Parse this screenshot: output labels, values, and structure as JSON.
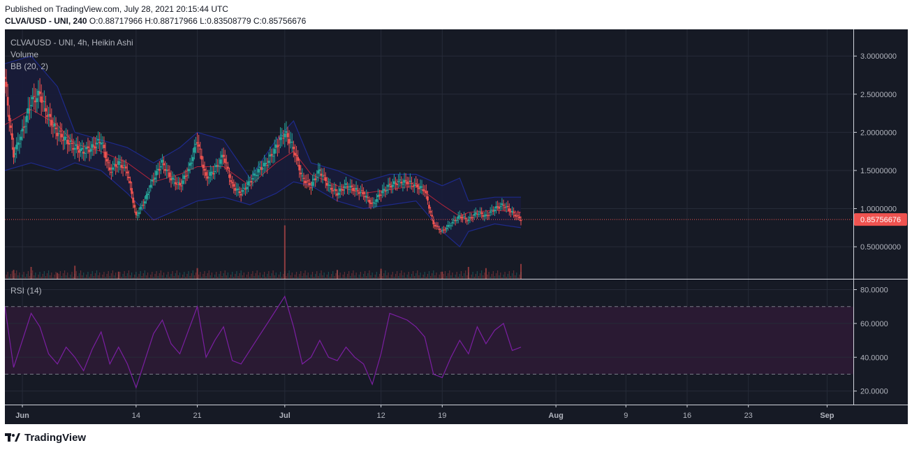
{
  "published": "Published on TradingView.com, July 28, 2021 20:15:44 UTC",
  "ohlc_line": {
    "symbol": "CLVA/USD - UNI, 240",
    "o_label": "O:",
    "o": "0.88717966",
    "h_label": "H:",
    "h": "0.88717966",
    "l_label": "L:",
    "l": "0.83508779",
    "c_label": "C:",
    "c": "0.85756676"
  },
  "legend": {
    "main": "CLVA/USD - UNI, 4h, Heikin Ashi",
    "volume": "Volume",
    "bb": "BB (20, 2)",
    "rsi": "RSI (14)"
  },
  "last_price_label": "0.85756676",
  "footer": {
    "brand": "TradingView"
  },
  "colors": {
    "background": "#161a25",
    "grid": "#262b38",
    "up": "#26a69a",
    "down": "#ef5350",
    "bb_band": "#1e2a8a",
    "bb_fill": "#181c3a",
    "bb_basis": "#b2243a",
    "rsi_line": "#7b1fa2",
    "rsi_band": "#2a1a33",
    "price_tag": "#ef5350",
    "axis_text": "#b2b5be"
  },
  "chart_data": {
    "type": "candlestick",
    "candle_style": "Heikin Ashi",
    "interval": "4h",
    "x_ticks": [
      "Jun",
      "14",
      "21",
      "Jul",
      "12",
      "19",
      "Aug",
      "9",
      "16",
      "23",
      "Sep"
    ],
    "x_tick_dates": [
      "2021-06-01",
      "2021-06-14",
      "2021-06-21",
      "2021-07-01",
      "2021-07-12",
      "2021-07-19",
      "2021-08-01",
      "2021-08-09",
      "2021-08-16",
      "2021-08-23",
      "2021-09-01"
    ],
    "x_range": [
      "2021-05-30",
      "2021-09-04"
    ],
    "price_axis": {
      "ticks": [
        3.0,
        2.5,
        2.0,
        1.5,
        1.0,
        0.5
      ],
      "tick_labels": [
        "3.0000000",
        "2.5000000",
        "2.0000000",
        "1.5000000",
        "1.0000000",
        "0.50000000"
      ],
      "ylim": [
        0.08,
        3.35
      ],
      "last_price": 0.85756676
    },
    "price_path": [
      [
        "2021-05-30",
        2.7
      ],
      [
        "2021-05-31",
        1.7
      ],
      [
        "2021-06-01",
        2.0
      ],
      [
        "2021-06-02",
        2.4
      ],
      [
        "2021-06-03",
        2.5
      ],
      [
        "2021-06-04",
        2.2
      ],
      [
        "2021-06-05",
        2.0
      ],
      [
        "2021-06-06",
        1.9
      ],
      [
        "2021-06-07",
        1.8
      ],
      [
        "2021-06-08",
        1.75
      ],
      [
        "2021-06-09",
        1.8
      ],
      [
        "2021-06-10",
        1.9
      ],
      [
        "2021-06-11",
        1.5
      ],
      [
        "2021-06-12",
        1.6
      ],
      [
        "2021-06-13",
        1.5
      ],
      [
        "2021-06-14",
        0.9
      ],
      [
        "2021-06-15",
        1.1
      ],
      [
        "2021-06-16",
        1.4
      ],
      [
        "2021-06-17",
        1.6
      ],
      [
        "2021-06-18",
        1.4
      ],
      [
        "2021-06-19",
        1.3
      ],
      [
        "2021-06-20",
        1.5
      ],
      [
        "2021-06-21",
        1.9
      ],
      [
        "2021-06-22",
        1.4
      ],
      [
        "2021-06-23",
        1.5
      ],
      [
        "2021-06-24",
        1.7
      ],
      [
        "2021-06-25",
        1.3
      ],
      [
        "2021-06-26",
        1.2
      ],
      [
        "2021-06-27",
        1.35
      ],
      [
        "2021-06-28",
        1.5
      ],
      [
        "2021-06-29",
        1.6
      ],
      [
        "2021-06-30",
        1.8
      ],
      [
        "2021-07-01",
        2.0
      ],
      [
        "2021-07-02",
        1.8
      ],
      [
        "2021-07-03",
        1.4
      ],
      [
        "2021-07-04",
        1.3
      ],
      [
        "2021-07-05",
        1.5
      ],
      [
        "2021-07-06",
        1.3
      ],
      [
        "2021-07-07",
        1.2
      ],
      [
        "2021-07-08",
        1.3
      ],
      [
        "2021-07-09",
        1.25
      ],
      [
        "2021-07-10",
        1.2
      ],
      [
        "2021-07-11",
        1.05
      ],
      [
        "2021-07-12",
        1.2
      ],
      [
        "2021-07-13",
        1.3
      ],
      [
        "2021-07-14",
        1.35
      ],
      [
        "2021-07-15",
        1.35
      ],
      [
        "2021-07-16",
        1.3
      ],
      [
        "2021-07-17",
        1.25
      ],
      [
        "2021-07-18",
        0.8
      ],
      [
        "2021-07-19",
        0.7
      ],
      [
        "2021-07-20",
        0.8
      ],
      [
        "2021-07-21",
        0.9
      ],
      [
        "2021-07-22",
        0.85
      ],
      [
        "2021-07-23",
        0.95
      ],
      [
        "2021-07-24",
        0.9
      ],
      [
        "2021-07-25",
        1.0
      ],
      [
        "2021-07-26",
        1.05
      ],
      [
        "2021-07-27",
        0.95
      ],
      [
        "2021-07-28",
        0.86
      ]
    ],
    "bb_upper": [
      [
        "2021-05-30",
        2.9
      ],
      [
        "2021-06-02",
        3.0
      ],
      [
        "2021-06-05",
        2.6
      ],
      [
        "2021-06-07",
        2.0
      ],
      [
        "2021-06-10",
        1.9
      ],
      [
        "2021-06-13",
        1.8
      ],
      [
        "2021-06-16",
        1.6
      ],
      [
        "2021-06-19",
        1.8
      ],
      [
        "2021-06-21",
        2.0
      ],
      [
        "2021-06-24",
        1.9
      ],
      [
        "2021-06-27",
        1.4
      ],
      [
        "2021-06-30",
        1.9
      ],
      [
        "2021-07-02",
        2.15
      ],
      [
        "2021-07-04",
        1.6
      ],
      [
        "2021-07-07",
        1.5
      ],
      [
        "2021-07-10",
        1.35
      ],
      [
        "2021-07-13",
        1.45
      ],
      [
        "2021-07-16",
        1.45
      ],
      [
        "2021-07-19",
        1.3
      ],
      [
        "2021-07-21",
        1.4
      ],
      [
        "2021-07-22",
        1.1
      ],
      [
        "2021-07-25",
        1.15
      ],
      [
        "2021-07-28",
        1.15
      ]
    ],
    "bb_basis": [
      [
        "2021-05-30",
        2.1
      ],
      [
        "2021-06-02",
        2.3
      ],
      [
        "2021-06-05",
        2.1
      ],
      [
        "2021-06-07",
        1.85
      ],
      [
        "2021-06-10",
        1.75
      ],
      [
        "2021-06-13",
        1.6
      ],
      [
        "2021-06-16",
        1.35
      ],
      [
        "2021-06-19",
        1.45
      ],
      [
        "2021-06-21",
        1.55
      ],
      [
        "2021-06-24",
        1.55
      ],
      [
        "2021-06-27",
        1.3
      ],
      [
        "2021-06-30",
        1.6
      ],
      [
        "2021-07-02",
        1.75
      ],
      [
        "2021-07-04",
        1.45
      ],
      [
        "2021-07-07",
        1.3
      ],
      [
        "2021-07-10",
        1.2
      ],
      [
        "2021-07-13",
        1.25
      ],
      [
        "2021-07-16",
        1.3
      ],
      [
        "2021-07-19",
        1.05
      ],
      [
        "2021-07-21",
        0.9
      ],
      [
        "2021-07-22",
        0.95
      ],
      [
        "2021-07-25",
        0.98
      ],
      [
        "2021-07-28",
        0.95
      ]
    ],
    "bb_lower": [
      [
        "2021-05-30",
        1.5
      ],
      [
        "2021-06-02",
        1.6
      ],
      [
        "2021-06-05",
        1.5
      ],
      [
        "2021-06-07",
        1.6
      ],
      [
        "2021-06-10",
        1.5
      ],
      [
        "2021-06-13",
        1.2
      ],
      [
        "2021-06-16",
        0.85
      ],
      [
        "2021-06-19",
        1.0
      ],
      [
        "2021-06-21",
        1.1
      ],
      [
        "2021-06-24",
        1.15
      ],
      [
        "2021-06-27",
        1.05
      ],
      [
        "2021-06-30",
        1.2
      ],
      [
        "2021-07-02",
        1.35
      ],
      [
        "2021-07-04",
        1.3
      ],
      [
        "2021-07-07",
        1.1
      ],
      [
        "2021-07-10",
        1.0
      ],
      [
        "2021-07-13",
        1.05
      ],
      [
        "2021-07-16",
        1.1
      ],
      [
        "2021-07-19",
        0.7
      ],
      [
        "2021-07-21",
        0.5
      ],
      [
        "2021-07-22",
        0.7
      ],
      [
        "2021-07-25",
        0.8
      ],
      [
        "2021-07-28",
        0.75
      ]
    ],
    "volume_spikes": [
      [
        "2021-05-31",
        0.15
      ],
      [
        "2021-06-02",
        0.2
      ],
      [
        "2021-06-05",
        0.1
      ],
      [
        "2021-06-07",
        0.22
      ],
      [
        "2021-06-12",
        0.12
      ],
      [
        "2021-06-21",
        0.18
      ],
      [
        "2021-07-01",
        0.9
      ],
      [
        "2021-07-07",
        0.15
      ],
      [
        "2021-07-12",
        0.17
      ],
      [
        "2021-07-19",
        0.12
      ],
      [
        "2021-07-22",
        0.2
      ],
      [
        "2021-07-24",
        0.18
      ],
      [
        "2021-07-28",
        0.25
      ]
    ],
    "rsi": {
      "period": 14,
      "ticks": [
        80,
        60,
        40,
        20
      ],
      "tick_labels": [
        "80.0000",
        "60.0000",
        "40.0000",
        "20.0000"
      ],
      "ylim": [
        12,
        86
      ],
      "overbought": 70,
      "oversold": 30,
      "points": [
        [
          "2021-05-30",
          70
        ],
        [
          "2021-05-31",
          34
        ],
        [
          "2021-06-01",
          50
        ],
        [
          "2021-06-02",
          66
        ],
        [
          "2021-06-03",
          58
        ],
        [
          "2021-06-04",
          42
        ],
        [
          "2021-06-05",
          36
        ],
        [
          "2021-06-06",
          46
        ],
        [
          "2021-06-07",
          40
        ],
        [
          "2021-06-08",
          32
        ],
        [
          "2021-06-09",
          45
        ],
        [
          "2021-06-10",
          55
        ],
        [
          "2021-06-11",
          36
        ],
        [
          "2021-06-12",
          46
        ],
        [
          "2021-06-13",
          36
        ],
        [
          "2021-06-14",
          22
        ],
        [
          "2021-06-15",
          38
        ],
        [
          "2021-06-16",
          54
        ],
        [
          "2021-06-17",
          62
        ],
        [
          "2021-06-18",
          48
        ],
        [
          "2021-06-19",
          42
        ],
        [
          "2021-06-20",
          56
        ],
        [
          "2021-06-21",
          70
        ],
        [
          "2021-06-22",
          40
        ],
        [
          "2021-06-23",
          50
        ],
        [
          "2021-06-24",
          58
        ],
        [
          "2021-06-25",
          38
        ],
        [
          "2021-06-26",
          36
        ],
        [
          "2021-06-27",
          44
        ],
        [
          "2021-06-28",
          52
        ],
        [
          "2021-06-29",
          60
        ],
        [
          "2021-06-30",
          68
        ],
        [
          "2021-07-01",
          76
        ],
        [
          "2021-07-02",
          58
        ],
        [
          "2021-07-03",
          36
        ],
        [
          "2021-07-04",
          40
        ],
        [
          "2021-07-05",
          50
        ],
        [
          "2021-07-06",
          40
        ],
        [
          "2021-07-07",
          38
        ],
        [
          "2021-07-08",
          46
        ],
        [
          "2021-07-09",
          40
        ],
        [
          "2021-07-10",
          36
        ],
        [
          "2021-07-11",
          24
        ],
        [
          "2021-07-12",
          42
        ],
        [
          "2021-07-13",
          66
        ],
        [
          "2021-07-14",
          64
        ],
        [
          "2021-07-15",
          62
        ],
        [
          "2021-07-16",
          58
        ],
        [
          "2021-07-17",
          52
        ],
        [
          "2021-07-18",
          30
        ],
        [
          "2021-07-19",
          28
        ],
        [
          "2021-07-20",
          40
        ],
        [
          "2021-07-21",
          50
        ],
        [
          "2021-07-22",
          42
        ],
        [
          "2021-07-23",
          58
        ],
        [
          "2021-07-24",
          48
        ],
        [
          "2021-07-25",
          56
        ],
        [
          "2021-07-26",
          60
        ],
        [
          "2021-07-27",
          44
        ],
        [
          "2021-07-28",
          46
        ]
      ]
    }
  }
}
